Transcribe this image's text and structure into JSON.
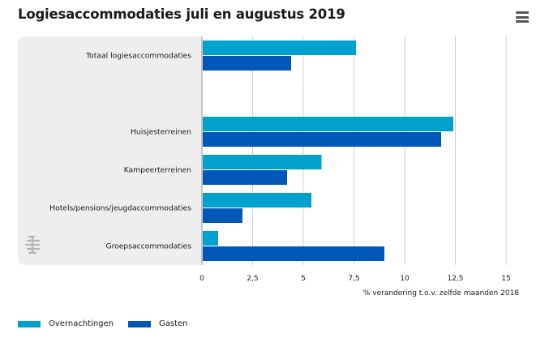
{
  "page": {
    "title": "Logiesaccommodaties juli en augustus 2019",
    "menu_icon": "hamburger-menu-icon",
    "logo_icon": "cbs-logo-icon"
  },
  "colors": {
    "overnachtingen": "#00a1cd",
    "gasten": "#0058b8",
    "plot_background": "#eeeeee",
    "gridline": "#d0d0d0"
  },
  "chart_data": {
    "type": "bar",
    "orientation": "horizontal",
    "title": "Logiesaccommodaties juli en augustus 2019",
    "xlabel": "% verandering t.o.v. zelfde maanden 2018",
    "ylabel": "",
    "xlim": [
      0,
      15
    ],
    "xticks": [
      0,
      2.5,
      5,
      7.5,
      10,
      12.5,
      15
    ],
    "xtick_labels": [
      "0",
      "2,5",
      "5",
      "7,5",
      "10",
      "12,5",
      "15"
    ],
    "categories": [
      "Totaal logiesaccommodaties",
      "",
      "Huisjesterreinen",
      "Kampeerterreinen",
      "Hotels/pensions/jeugdaccommodaties",
      "Groepsaccommodaties"
    ],
    "series": [
      {
        "name": "Overnachtingen",
        "values": [
          7.6,
          null,
          12.4,
          5.9,
          5.4,
          0.8
        ]
      },
      {
        "name": "Gasten",
        "values": [
          4.4,
          null,
          11.8,
          4.2,
          2.0,
          9.0
        ]
      }
    ],
    "grid": true,
    "legend_position": "bottom-left"
  }
}
